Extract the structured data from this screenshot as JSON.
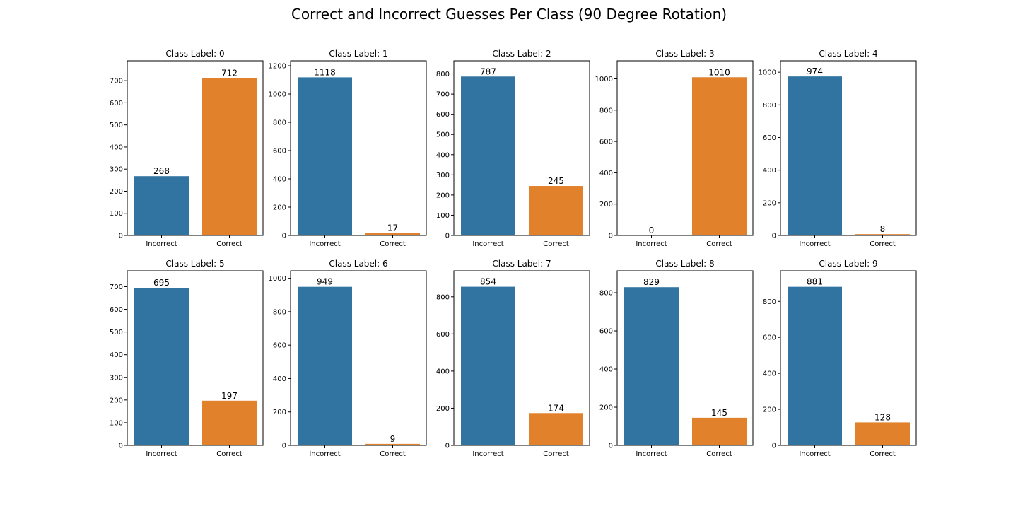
{
  "figure": {
    "title": "Correct and Incorrect Guesses Per Class (90 Degree Rotation)"
  },
  "colors": {
    "incorrect": "#3274a1",
    "correct": "#e1812c"
  },
  "chart_data": [
    {
      "type": "bar",
      "title": "Class Label: 0",
      "categories": [
        "Incorrect",
        "Correct"
      ],
      "values": [
        268,
        712
      ],
      "ylim": [
        0,
        790
      ],
      "yticks": [
        0,
        100,
        200,
        300,
        400,
        500,
        600,
        700
      ],
      "data_labels": [
        "268",
        "712"
      ]
    },
    {
      "type": "bar",
      "title": "Class Label: 1",
      "categories": [
        "Incorrect",
        "Correct"
      ],
      "values": [
        1118,
        17
      ],
      "ylim": [
        0,
        1235
      ],
      "yticks": [
        0,
        200,
        400,
        600,
        800,
        1000,
        1200
      ],
      "data_labels": [
        "1118",
        "17"
      ]
    },
    {
      "type": "bar",
      "title": "Class Label: 2",
      "categories": [
        "Incorrect",
        "Correct"
      ],
      "values": [
        787,
        245
      ],
      "ylim": [
        0,
        865
      ],
      "yticks": [
        0,
        100,
        200,
        300,
        400,
        500,
        600,
        700,
        800
      ],
      "data_labels": [
        "787",
        "245"
      ]
    },
    {
      "type": "bar",
      "title": "Class Label: 3",
      "categories": [
        "Incorrect",
        "Correct"
      ],
      "values": [
        0,
        1010
      ],
      "ylim": [
        0,
        1115
      ],
      "yticks": [
        0,
        200,
        400,
        600,
        800,
        1000
      ],
      "data_labels": [
        "0",
        "1010"
      ]
    },
    {
      "type": "bar",
      "title": "Class Label: 4",
      "categories": [
        "Incorrect",
        "Correct"
      ],
      "values": [
        974,
        8
      ],
      "ylim": [
        0,
        1070
      ],
      "yticks": [
        0,
        200,
        400,
        600,
        800,
        1000
      ],
      "data_labels": [
        "974",
        "8"
      ]
    },
    {
      "type": "bar",
      "title": "Class Label: 5",
      "categories": [
        "Incorrect",
        "Correct"
      ],
      "values": [
        695,
        197
      ],
      "ylim": [
        0,
        770
      ],
      "yticks": [
        0,
        100,
        200,
        300,
        400,
        500,
        600,
        700
      ],
      "data_labels": [
        "695",
        "197"
      ]
    },
    {
      "type": "bar",
      "title": "Class Label: 6",
      "categories": [
        "Incorrect",
        "Correct"
      ],
      "values": [
        949,
        9
      ],
      "ylim": [
        0,
        1045
      ],
      "yticks": [
        0,
        200,
        400,
        600,
        800,
        1000
      ],
      "data_labels": [
        "949",
        "9"
      ]
    },
    {
      "type": "bar",
      "title": "Class Label: 7",
      "categories": [
        "Incorrect",
        "Correct"
      ],
      "values": [
        854,
        174
      ],
      "ylim": [
        0,
        940
      ],
      "yticks": [
        0,
        200,
        400,
        600,
        800
      ],
      "data_labels": [
        "854",
        "174"
      ]
    },
    {
      "type": "bar",
      "title": "Class Label: 8",
      "categories": [
        "Incorrect",
        "Correct"
      ],
      "values": [
        829,
        145
      ],
      "ylim": [
        0,
        915
      ],
      "yticks": [
        0,
        200,
        400,
        600,
        800
      ],
      "data_labels": [
        "829",
        "145"
      ]
    },
    {
      "type": "bar",
      "title": "Class Label: 9",
      "categories": [
        "Incorrect",
        "Correct"
      ],
      "values": [
        881,
        128
      ],
      "ylim": [
        0,
        970
      ],
      "yticks": [
        0,
        200,
        400,
        600,
        800
      ],
      "data_labels": [
        "881",
        "128"
      ]
    }
  ]
}
